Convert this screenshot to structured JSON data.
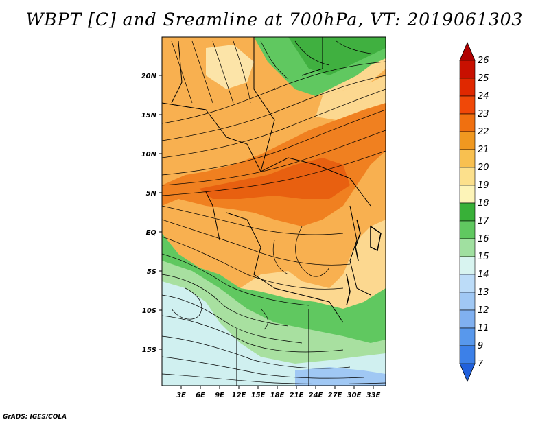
{
  "title": "WBPT [C] and Sreamline at 700hPa, VT: 2019061303",
  "credit": "GrADS: IGES/COLA",
  "lat_labels": [
    "20N",
    "15N",
    "10N",
    "5N",
    "EQ",
    "5S",
    "10S",
    "15S"
  ],
  "lon_labels": [
    "3E",
    "6E",
    "9E",
    "12E",
    "15E",
    "18E",
    "21E",
    "24E",
    "27E",
    "30E",
    "33E"
  ],
  "colorbar": {
    "labels": [
      "26",
      "25",
      "24",
      "23",
      "22",
      "21",
      "20",
      "19",
      "18",
      "17",
      "16",
      "15",
      "14",
      "13",
      "12",
      "11",
      "9",
      "7"
    ],
    "colors": [
      "#b00000",
      "#c81000",
      "#e02800",
      "#f04808",
      "#f07010",
      "#f09820",
      "#f8c050",
      "#fce08c",
      "#fdf4b8",
      "#38b038",
      "#60c860",
      "#a0e0a0",
      "#d8f4f0",
      "#bcdcf8",
      "#a0c8f4",
      "#80b0f0",
      "#5898ec",
      "#3c80e8",
      "#2060dc"
    ]
  },
  "map_colors": {
    "hot": "#f08020",
    "warm": "#f8b050",
    "mild": "#fcd890",
    "cool_green": "#60c860",
    "green": "#40b040",
    "pale_green": "#a8e0a0",
    "pale_blue": "#d0f0f0",
    "blue": "#a0c8f4"
  }
}
